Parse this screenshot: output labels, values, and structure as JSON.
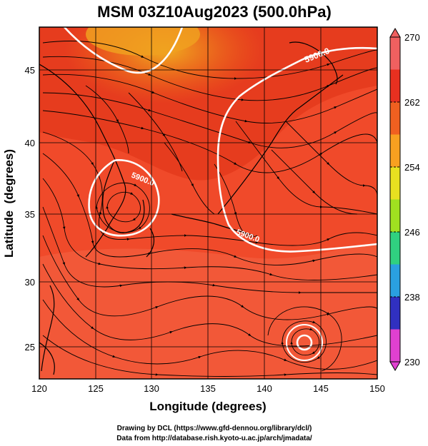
{
  "title": "MSM 03Z10Aug2023 (500.0hPa)",
  "credits": {
    "line1": "Drawing by DCL (https://www.gfd-dennou.org/library/dcl/)",
    "line2": "Data from http://database.rish.kyoto-u.ac.jp/arch/jmadata/"
  },
  "chart_data": {
    "type": "map",
    "xlabel": "Longitude (degrees)",
    "ylabel": "Latitude  (degrees)",
    "xlim": [
      120,
      150
    ],
    "ylim": [
      22.5,
      47.5
    ],
    "xticks": [
      "120",
      "125",
      "130",
      "135",
      "140",
      "145",
      "150"
    ],
    "yticks": [
      "25",
      "30",
      "35",
      "40",
      "45"
    ],
    "colorbar": {
      "range": [
        230,
        270
      ],
      "ticks": [
        "230",
        "238",
        "246",
        "254",
        "262",
        "270"
      ],
      "colors": [
        "#e040d0",
        "#3030c0",
        "#2aa0e0",
        "#30d080",
        "#a0e020",
        "#e8e020",
        "#f8a020",
        "#f06020",
        "#e83020",
        "#f06060"
      ]
    },
    "contours": [
      {
        "label": "5900.0",
        "lon": 138.2,
        "lat": 46.6
      },
      {
        "label": "5900.0",
        "lon": 128.2,
        "lat": 36.5
      },
      {
        "label": "5900.0",
        "lon": 136.8,
        "lat": 33.1
      }
    ]
  }
}
